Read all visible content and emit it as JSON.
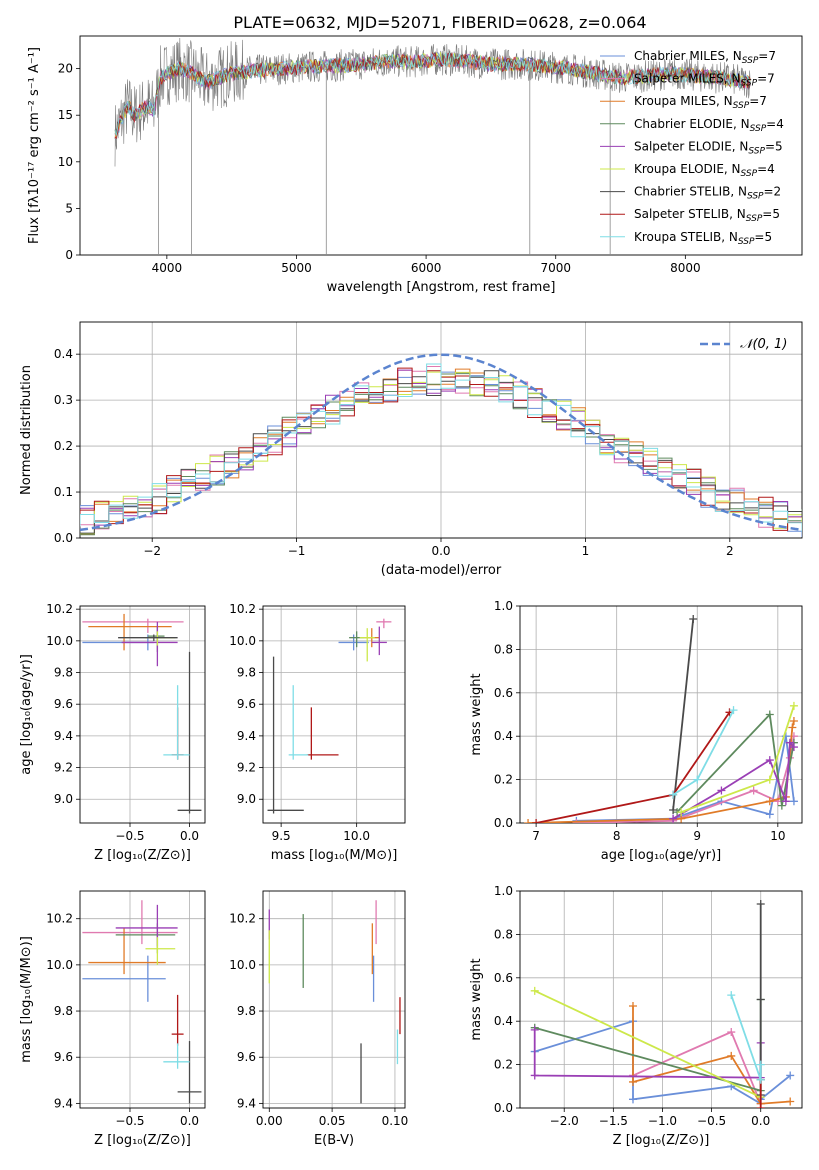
{
  "figure_title": "PLATE=0632, MJD=52071, FIBERID=0628, z=0.064",
  "series_colors": {
    "Chabrier MILES": "#6a8fd9",
    "Salpeter MILES": "#e07ab0",
    "Kroupa MILES": "#e07b28",
    "Chabrier ELODIE": "#5e8a5e",
    "Salpeter ELODIE": "#9a3fb5",
    "Kroupa ELODIE": "#cde84a",
    "Chabrier STELIB": "#4a4a4a",
    "Salpeter STELIB": "#b01818",
    "Kroupa STELIB": "#7fdde6"
  },
  "chart_data": [
    {
      "id": "spectrum",
      "type": "line",
      "title": "PLATE=0632, MJD=52071, FIBERID=0628, z=0.064",
      "xlabel": "wavelength [Angstrom, rest frame]",
      "ylabel": "Flux [fλ10⁻¹⁷ erg cm⁻² s⁻¹ A⁻¹]",
      "xlim": [
        3330,
        8900
      ],
      "ylim": [
        0,
        23.5
      ],
      "xticks": [
        4000,
        5000,
        6000,
        7000,
        8000
      ],
      "yticks": [
        0,
        5,
        10,
        15,
        20
      ],
      "grid": false,
      "legend_position": "right",
      "legend": [
        {
          "label": "Chabrier MILES, N",
          "sub": "SSP",
          "eq": "=7"
        },
        {
          "label": "Salpeter MILES, N",
          "sub": "SSP",
          "eq": "=7"
        },
        {
          "label": "Kroupa MILES, N",
          "sub": "SSP",
          "eq": "=7"
        },
        {
          "label": "Chabrier ELODIE, N",
          "sub": "SSP",
          "eq": "=4"
        },
        {
          "label": "Salpeter ELODIE, N",
          "sub": "SSP",
          "eq": "=5"
        },
        {
          "label": "Kroupa ELODIE, N",
          "sub": "SSP",
          "eq": "=4"
        },
        {
          "label": "Chabrier STELIB, N",
          "sub": "SSP",
          "eq": "=2"
        },
        {
          "label": "Salpeter STELIB, N",
          "sub": "SSP",
          "eq": "=5"
        },
        {
          "label": "Kroupa STELIB, N",
          "sub": "SSP",
          "eq": "=5"
        }
      ],
      "continuum": {
        "x": [
          3600,
          3650,
          3700,
          3750,
          3800,
          3850,
          3900,
          3950,
          4000,
          4100,
          4200,
          4300,
          4400,
          4500,
          4700,
          4900,
          5100,
          5300,
          5500,
          5700,
          5900,
          6100,
          6300,
          6500,
          6700,
          6900,
          7100,
          7300,
          7500,
          7700,
          7900,
          8100,
          8300,
          8500
        ],
        "y": [
          13,
          14.5,
          16,
          15,
          15.5,
          16,
          15.5,
          19,
          19.5,
          20,
          19.5,
          18.5,
          19,
          19.5,
          19.8,
          20,
          20.2,
          20.3,
          20.5,
          20.8,
          20.7,
          21,
          20.8,
          20.5,
          20.5,
          20.3,
          20,
          19.5,
          19,
          19.2,
          19.5,
          19.2,
          19,
          18.5
        ]
      },
      "absorption_features": [
        {
          "x": 3935,
          "y": 0
        },
        {
          "x": 4190,
          "y": 0
        },
        {
          "x": 5230,
          "y": 0
        },
        {
          "x": 6800,
          "y": 0
        },
        {
          "x": 7420,
          "y": 0
        }
      ]
    },
    {
      "id": "residuals",
      "type": "bar",
      "xlabel": "(data-model)/error",
      "ylabel": "Normed distribution",
      "xlim": [
        -2.5,
        2.5
      ],
      "ylim": [
        0,
        0.47
      ],
      "xticks": [
        -2,
        -1,
        0,
        1,
        2
      ],
      "yticks": [
        0.0,
        0.1,
        0.2,
        0.3,
        0.4
      ],
      "grid": true,
      "legend_position": "top-right",
      "reference_curve": {
        "label": "𝒩(0, 1)",
        "mean": 0,
        "sigma": 1,
        "color": "#5b84cf"
      }
    },
    {
      "id": "age-vs-Z",
      "type": "scatter",
      "xlabel": "Z [log₁₀(Z/Z⊙)]",
      "ylabel": "age  [log₁₀(age/yr)]",
      "xlim": [
        -0.92,
        0.13
      ],
      "ylim": [
        8.85,
        10.22
      ],
      "xticks": [
        -0.5,
        0.0
      ],
      "yticks": [
        9.0,
        9.2,
        9.4,
        9.6,
        9.8,
        10.0,
        10.2
      ],
      "grid": true,
      "points": [
        {
          "series": "Chabrier MILES",
          "x": -0.35,
          "y": 9.99,
          "xerr": [
            0.55,
            0.05
          ],
          "yerr": [
            0.05,
            0.05
          ]
        },
        {
          "series": "Salpeter MILES",
          "x": -0.35,
          "y": 10.12,
          "xerr": [
            0.55,
            0.3
          ],
          "yerr": [
            0.07,
            0.02
          ]
        },
        {
          "series": "Kroupa MILES",
          "x": -0.55,
          "y": 10.09,
          "xerr": [
            0.3,
            0.4
          ],
          "yerr": [
            0.15,
            0.08
          ]
        },
        {
          "series": "Chabrier ELODIE",
          "x": -0.27,
          "y": 10.03,
          "xerr": [
            0.08,
            0.06
          ],
          "yerr": [
            0.1,
            0.06
          ]
        },
        {
          "series": "Salpeter ELODIE",
          "x": -0.27,
          "y": 9.99,
          "xerr": [
            0.3,
            0.17
          ],
          "yerr": [
            0.15,
            0.13
          ]
        },
        {
          "series": "Kroupa ELODIE",
          "x": -0.27,
          "y": 10.02,
          "xerr": [
            0.1,
            0.15
          ],
          "yerr": [
            0.05,
            0.04
          ]
        },
        {
          "series": "Chabrier STELIB",
          "x": 0.0,
          "y": 8.93,
          "xerr": [
            0.1,
            0.1
          ],
          "yerr": [
            0.02,
            1.0
          ]
        },
        {
          "series": "Salpeter STELIB",
          "x": -0.1,
          "y": 9.28,
          "xerr": [
            0.05,
            0.05
          ],
          "yerr": [
            0.03,
            0.3
          ]
        },
        {
          "series": "Kroupa STELIB",
          "x": -0.1,
          "y": 9.28,
          "xerr": [
            0.12,
            0.1
          ],
          "yerr": [
            0.03,
            0.44
          ]
        },
        {
          "series": "Chabrier STELIB",
          "x": -0.3,
          "y": 10.02,
          "xerr": [
            0.3,
            0.2
          ],
          "yerr": [
            0.02,
            0.02
          ]
        }
      ]
    },
    {
      "id": "age-vs-mass",
      "type": "scatter",
      "xlabel": "mass [log₁₀(M/M⊙)]",
      "ylabel": "",
      "xlim": [
        9.38,
        10.32
      ],
      "ylim": [
        8.85,
        10.22
      ],
      "xticks": [
        9.5,
        10.0
      ],
      "yticks": [
        9.0,
        9.2,
        9.4,
        9.6,
        9.8,
        10.0,
        10.2
      ],
      "grid": true,
      "points": [
        {
          "series": "Chabrier MILES",
          "x": 9.98,
          "y": 9.99,
          "xerr": [
            0.1,
            0.1
          ],
          "yerr": [
            0.05,
            0.05
          ]
        },
        {
          "series": "Salpeter MILES",
          "x": 10.18,
          "y": 10.12,
          "xerr": [
            0.05,
            0.05
          ],
          "yerr": [
            0.04,
            0.02
          ]
        },
        {
          "series": "Kroupa MILES",
          "x": 10.1,
          "y": 10.02,
          "xerr": [
            0.05,
            0.05
          ],
          "yerr": [
            0.06,
            0.06
          ]
        },
        {
          "series": "Chabrier ELODIE",
          "x": 10.0,
          "y": 10.02,
          "xerr": [
            0.05,
            0.05
          ],
          "yerr": [
            0.06,
            0.04
          ]
        },
        {
          "series": "Salpeter ELODIE",
          "x": 10.15,
          "y": 9.99,
          "xerr": [
            0.05,
            0.05
          ],
          "yerr": [
            0.08,
            0.1
          ]
        },
        {
          "series": "Kroupa ELODIE",
          "x": 10.07,
          "y": 10.02,
          "xerr": [
            0.05,
            0.05
          ],
          "yerr": [
            0.15,
            0.06
          ]
        },
        {
          "series": "Chabrier STELIB",
          "x": 9.45,
          "y": 8.93,
          "xerr": [
            0.04,
            0.2
          ],
          "yerr": [
            0.02,
            0.97
          ]
        },
        {
          "series": "Salpeter STELIB",
          "x": 9.7,
          "y": 9.28,
          "xerr": [
            0.03,
            0.18
          ],
          "yerr": [
            0.03,
            0.3
          ]
        },
        {
          "series": "Kroupa STELIB",
          "x": 9.58,
          "y": 9.28,
          "xerr": [
            0.03,
            0.1
          ],
          "yerr": [
            0.03,
            0.44
          ]
        }
      ]
    },
    {
      "id": "mass-weight-vs-age",
      "type": "line",
      "xlabel": "age  [log₁₀(age/yr)]",
      "ylabel": "mass weight",
      "xlim": [
        6.8,
        10.3
      ],
      "ylim": [
        0,
        1.0
      ],
      "xticks": [
        7,
        8,
        9,
        10
      ],
      "yticks": [
        0.0,
        0.2,
        0.4,
        0.6,
        0.8,
        1.0
      ],
      "grid": true,
      "series": [
        {
          "name": "Chabrier MILES",
          "x": [
            7.5,
            8.7,
            9.3,
            9.9,
            10.1,
            10.2
          ],
          "y": [
            0.01,
            0.02,
            0.1,
            0.04,
            0.4,
            0.1
          ]
        },
        {
          "name": "Salpeter MILES",
          "x": [
            7.5,
            8.7,
            9.7,
            10.0,
            10.15,
            10.2
          ],
          "y": [
            0.0,
            0.01,
            0.15,
            0.1,
            0.3,
            0.4
          ]
        },
        {
          "name": "Kroupa MILES",
          "x": [
            6.9,
            8.8,
            9.9,
            10.1,
            10.18,
            10.2
          ],
          "y": [
            0.0,
            0.02,
            0.1,
            0.12,
            0.44,
            0.47
          ]
        },
        {
          "name": "Chabrier ELODIE",
          "x": [
            8.75,
            9.9,
            10.05,
            10.2
          ],
          "y": [
            0.05,
            0.5,
            0.08,
            0.37
          ]
        },
        {
          "name": "Salpeter ELODIE",
          "x": [
            8.7,
            9.3,
            9.9,
            10.1,
            10.15,
            10.2
          ],
          "y": [
            0.02,
            0.15,
            0.29,
            0.1,
            0.37,
            0.35
          ]
        },
        {
          "name": "Kroupa ELODIE",
          "x": [
            8.8,
            9.9,
            10.2
          ],
          "y": [
            0.05,
            0.2,
            0.54
          ]
        },
        {
          "name": "Chabrier STELIB",
          "x": [
            8.7,
            8.95
          ],
          "y": [
            0.06,
            0.94
          ]
        },
        {
          "name": "Salpeter STELIB",
          "x": [
            7.0,
            8.7,
            9.4
          ],
          "y": [
            0.0,
            0.13,
            0.51
          ]
        },
        {
          "name": "Kroupa STELIB",
          "x": [
            8.7,
            9.0,
            9.45
          ],
          "y": [
            0.13,
            0.2,
            0.52
          ]
        }
      ]
    },
    {
      "id": "mass-vs-Z",
      "type": "scatter",
      "xlabel": "Z [log₁₀(Z/Z⊙)]",
      "ylabel": "mass [log₁₀(M/M⊙)]",
      "xlim": [
        -0.92,
        0.13
      ],
      "ylim": [
        9.38,
        10.32
      ],
      "xticks": [
        -0.5,
        0.0
      ],
      "yticks": [
        9.4,
        9.6,
        9.8,
        10.0,
        10.2
      ],
      "grid": true,
      "points": [
        {
          "series": "Chabrier MILES",
          "x": -0.35,
          "y": 9.94,
          "xerr": [
            0.55,
            0.15
          ],
          "yerr": [
            0.1,
            0.1
          ]
        },
        {
          "series": "Salpeter MILES",
          "x": -0.4,
          "y": 10.14,
          "xerr": [
            0.5,
            0.3
          ],
          "yerr": [
            0.05,
            0.14
          ]
        },
        {
          "series": "Kroupa MILES",
          "x": -0.55,
          "y": 10.01,
          "xerr": [
            0.3,
            0.35
          ],
          "yerr": [
            0.05,
            0.15
          ]
        },
        {
          "series": "Chabrier ELODIE",
          "x": -0.27,
          "y": 10.13,
          "xerr": [
            0.35,
            0.15
          ],
          "yerr": [
            0.08,
            0.05
          ]
        },
        {
          "series": "Salpeter ELODIE",
          "x": -0.27,
          "y": 10.16,
          "xerr": [
            0.35,
            0.17
          ],
          "yerr": [
            0.08,
            0.1
          ]
        },
        {
          "series": "Kroupa ELODIE",
          "x": -0.27,
          "y": 10.07,
          "xerr": [
            0.1,
            0.15
          ],
          "yerr": [
            0.07,
            0.05
          ]
        },
        {
          "series": "Chabrier STELIB",
          "x": 0.0,
          "y": 9.45,
          "xerr": [
            0.1,
            0.1
          ],
          "yerr": [
            0.05,
            0.22
          ]
        },
        {
          "series": "Salpeter STELIB",
          "x": -0.1,
          "y": 9.7,
          "xerr": [
            0.05,
            0.05
          ],
          "yerr": [
            0.05,
            0.17
          ]
        },
        {
          "series": "Kroupa STELIB",
          "x": -0.1,
          "y": 9.58,
          "xerr": [
            0.12,
            0.1
          ],
          "yerr": [
            0.03,
            0.08
          ]
        }
      ]
    },
    {
      "id": "mass-vs-EBV",
      "type": "scatter",
      "xlabel": "E(B-V)",
      "ylabel": "",
      "xlim": [
        -0.005,
        0.108
      ],
      "ylim": [
        9.38,
        10.32
      ],
      "xticks": [
        0.0,
        0.05,
        0.1
      ],
      "yticks": [
        9.4,
        9.6,
        9.8,
        10.0,
        10.2
      ],
      "grid": true,
      "points": [
        {
          "series": "Chabrier MILES",
          "x": 0.083,
          "y": 9.94,
          "yerr": [
            0.1,
            0.1
          ]
        },
        {
          "series": "Salpeter MILES",
          "x": 0.085,
          "y": 10.14,
          "yerr": [
            0.05,
            0.14
          ]
        },
        {
          "series": "Kroupa MILES",
          "x": 0.082,
          "y": 10.01,
          "yerr": [
            0.05,
            0.17
          ]
        },
        {
          "series": "Chabrier ELODIE",
          "x": 0.027,
          "y": 10.1,
          "yerr": [
            0.2,
            0.12
          ]
        },
        {
          "series": "Salpeter ELODIE",
          "x": 0.0,
          "y": 10.16,
          "yerr": [
            0.05,
            0.08
          ]
        },
        {
          "series": "Kroupa ELODIE",
          "x": 0.0,
          "y": 10.07,
          "yerr": [
            0.15,
            0.08
          ]
        },
        {
          "series": "Chabrier STELIB",
          "x": 0.073,
          "y": 9.45,
          "yerr": [
            0.05,
            0.21
          ]
        },
        {
          "series": "Salpeter STELIB",
          "x": 0.104,
          "y": 9.75,
          "yerr": [
            0.05,
            0.11
          ]
        },
        {
          "series": "Kroupa STELIB",
          "x": 0.102,
          "y": 9.6,
          "yerr": [
            0.03,
            0.12
          ]
        }
      ]
    },
    {
      "id": "mass-weight-vs-Z",
      "type": "line",
      "xlabel": "Z [log₁₀(Z/Z⊙)]",
      "ylabel": "mass weight",
      "xlim": [
        -2.45,
        0.42
      ],
      "ylim": [
        0,
        1.0
      ],
      "xticks": [
        -2.0,
        -1.5,
        -1.0,
        -0.5,
        0.0
      ],
      "yticks": [
        0.0,
        0.2,
        0.4,
        0.6,
        0.8,
        1.0
      ],
      "grid": true,
      "series": [
        {
          "name": "Chabrier MILES",
          "x": [
            -2.3,
            -1.3,
            -1.3,
            -0.3,
            0.0,
            0.0,
            0.3
          ],
          "y": [
            0.26,
            0.4,
            0.04,
            0.1,
            0.02,
            0.04,
            0.15
          ]
        },
        {
          "name": "Salpeter MILES",
          "x": [
            -1.3,
            -0.3,
            0.0
          ],
          "y": [
            0.15,
            0.35,
            0.02
          ]
        },
        {
          "name": "Kroupa MILES",
          "x": [
            -1.3,
            -1.3,
            -0.3,
            0.0,
            0.3
          ],
          "y": [
            0.47,
            0.12,
            0.24,
            0.02,
            0.03
          ]
        },
        {
          "name": "Chabrier ELODIE",
          "x": [
            -2.3,
            0.0,
            0.0
          ],
          "y": [
            0.37,
            0.08,
            0.5
          ]
        },
        {
          "name": "Salpeter ELODIE",
          "x": [
            -2.3,
            -2.3,
            0.0,
            0.0
          ],
          "y": [
            0.36,
            0.15,
            0.14,
            0.3
          ]
        },
        {
          "name": "Kroupa ELODIE",
          "x": [
            -2.3,
            0.0
          ],
          "y": [
            0.54,
            0.05
          ]
        },
        {
          "name": "Chabrier STELIB",
          "x": [
            0.0,
            0.0,
            0.0
          ],
          "y": [
            0.06,
            0.94,
            0.5
          ]
        },
        {
          "name": "Salpeter STELIB",
          "x": [
            0.0,
            0.0
          ],
          "y": [
            0.0,
            0.13
          ]
        },
        {
          "name": "Kroupa STELIB",
          "x": [
            -0.3,
            0.0,
            0.0
          ],
          "y": [
            0.52,
            0.13,
            0.2
          ]
        }
      ]
    }
  ]
}
